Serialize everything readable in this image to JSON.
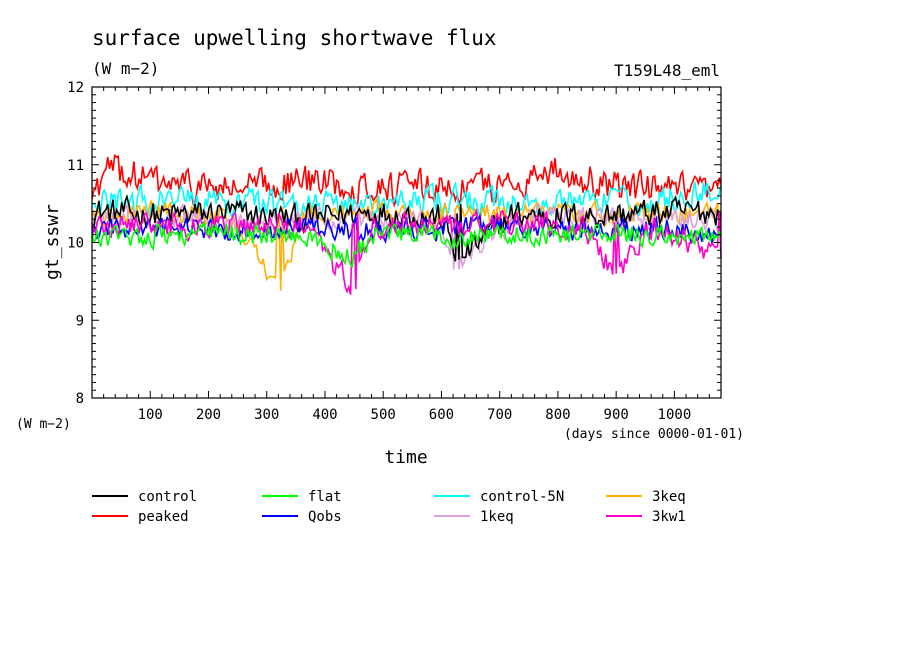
{
  "chart_data": {
    "type": "line",
    "title": "surface upwelling shortwave flux",
    "title_units": "(W m−2)",
    "run_label": "T159L48_eml",
    "xlabel": "time",
    "x_units": "(days since 0000-01-01)",
    "ylabel": "gt_sswr",
    "y_units": "(W m−2)",
    "xlim": [
      0,
      1080
    ],
    "ylim": [
      8,
      12
    ],
    "x_ticks": [
      100,
      200,
      300,
      400,
      500,
      600,
      700,
      800,
      900,
      1000
    ],
    "y_ticks": [
      8,
      9,
      10,
      11,
      12
    ],
    "x_tick_labels": [
      "100",
      "200",
      "300",
      "400",
      "500",
      "600",
      "700",
      "800",
      "900",
      "1000"
    ],
    "y_tick_labels": [
      "8",
      "9",
      "10",
      "11",
      "12"
    ],
    "grid": false,
    "legend_position": "bottom",
    "series": [
      {
        "name": "control",
        "color": "#000000",
        "mean": 10.35,
        "amplitude": 0.25,
        "x": [
          0,
          120,
          240,
          360,
          480,
          600,
          630,
          720,
          840,
          960,
          1080
        ],
        "y": [
          10.4,
          10.35,
          10.38,
          10.3,
          10.4,
          10.32,
          9.78,
          10.36,
          10.34,
          10.38,
          10.4
        ]
      },
      {
        "name": "peaked",
        "color": "#ff0000",
        "mean": 10.7,
        "amplitude": 0.3,
        "x": [
          0,
          30,
          120,
          240,
          360,
          480,
          600,
          720,
          780,
          900,
          1080
        ],
        "y": [
          10.6,
          10.95,
          10.75,
          10.68,
          10.8,
          10.72,
          10.7,
          10.74,
          10.95,
          10.72,
          10.6
        ]
      },
      {
        "name": "flat",
        "color": "#00ff00",
        "mean": 10.12,
        "amplitude": 0.2,
        "x": [
          0,
          120,
          240,
          360,
          450,
          480,
          600,
          720,
          840,
          960,
          1080
        ],
        "y": [
          10.05,
          10.1,
          10.12,
          10.08,
          9.8,
          10.1,
          10.08,
          10.12,
          10.1,
          10.1,
          10.05
        ]
      },
      {
        "name": "Qobs",
        "color": "#0000ff",
        "mean": 10.18,
        "amplitude": 0.2,
        "x": [
          0,
          120,
          240,
          360,
          480,
          600,
          720,
          840,
          960,
          1080
        ],
        "y": [
          10.15,
          10.18,
          10.16,
          10.2,
          10.15,
          10.18,
          10.2,
          10.16,
          10.18,
          10.1
        ]
      },
      {
        "name": "control-5N",
        "color": "#00ffff",
        "mean": 10.5,
        "amplitude": 0.25,
        "x": [
          0,
          120,
          240,
          360,
          480,
          600,
          720,
          840,
          960,
          1080
        ],
        "y": [
          10.5,
          10.55,
          10.5,
          10.52,
          10.48,
          10.55,
          10.5,
          10.52,
          10.5,
          10.7
        ]
      },
      {
        "name": "1keq",
        "color": "#dda0dd",
        "mean": 10.3,
        "amplitude": 0.2,
        "x": [
          0,
          120,
          240,
          360,
          480,
          600,
          622,
          720,
          840,
          960,
          1080
        ],
        "y": [
          10.3,
          10.32,
          10.28,
          10.3,
          10.32,
          10.3,
          9.65,
          10.3,
          10.32,
          10.28,
          10.3
        ]
      },
      {
        "name": "3keq",
        "color": "#ffb000",
        "mean": 10.35,
        "amplitude": 0.2,
        "x": [
          0,
          120,
          240,
          323,
          360,
          480,
          600,
          720,
          840,
          960,
          1080
        ],
        "y": [
          10.35,
          10.38,
          10.35,
          9.38,
          10.35,
          10.4,
          10.35,
          10.38,
          10.35,
          10.36,
          10.35
        ]
      },
      {
        "name": "3kw1",
        "color": "#ff00c8",
        "mean": 10.22,
        "amplitude": 0.22,
        "x": [
          0,
          120,
          240,
          360,
          452,
          480,
          600,
          720,
          840,
          900,
          960,
          1080
        ],
        "y": [
          10.2,
          10.22,
          10.2,
          10.22,
          9.4,
          10.22,
          10.2,
          10.24,
          10.2,
          9.6,
          10.2,
          9.8
        ]
      }
    ]
  }
}
